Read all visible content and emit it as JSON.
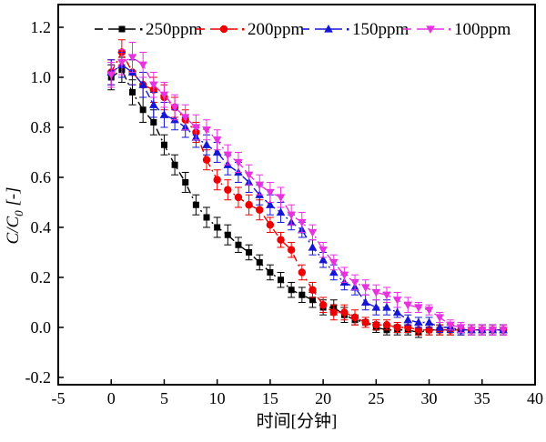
{
  "chart_data": {
    "type": "scatter",
    "title": "",
    "xlabel": "时间[分钟]",
    "ylabel": "C/C0 [-]",
    "ylabel_parts": {
      "pre": "C/C",
      "sub": "0",
      "post": " [-]"
    },
    "xlim": [
      -5,
      40
    ],
    "ylim": [
      -0.2,
      1.2
    ],
    "xticks": [
      "-5",
      "0",
      "5",
      "10",
      "15",
      "20",
      "25",
      "30",
      "35",
      "40"
    ],
    "yticks": [
      "-0.2",
      "0.0",
      "0.2",
      "0.4",
      "0.6",
      "0.8",
      "1.0",
      "1.2"
    ],
    "grid": false,
    "legend_position": "top-inside",
    "line_style": "dash-dot",
    "error_bars": true,
    "x": [
      0,
      1,
      2,
      3,
      4,
      5,
      6,
      7,
      8,
      9,
      10,
      11,
      12,
      13,
      14,
      15,
      16,
      17,
      18,
      19,
      20,
      21,
      22,
      23,
      24,
      25,
      26,
      27,
      28,
      29,
      30,
      31,
      32,
      33,
      34,
      35,
      36,
      37
    ],
    "series": [
      {
        "name": "250ppm",
        "color": "#000000",
        "marker": "square",
        "values": [
          1.0,
          1.03,
          0.94,
          0.87,
          0.82,
          0.73,
          0.65,
          0.58,
          0.49,
          0.44,
          0.4,
          0.37,
          0.33,
          0.3,
          0.26,
          0.22,
          0.19,
          0.15,
          0.13,
          0.11,
          0.08,
          0.08,
          0.05,
          0.03,
          0.02,
          0.0,
          -0.01,
          -0.01,
          -0.01,
          -0.02,
          -0.01,
          -0.01,
          -0.01,
          -0.01,
          -0.01,
          -0.01,
          -0.01,
          -0.01
        ],
        "errors": [
          0.05,
          0.05,
          0.05,
          0.05,
          0.05,
          0.04,
          0.04,
          0.04,
          0.04,
          0.04,
          0.04,
          0.04,
          0.03,
          0.03,
          0.03,
          0.03,
          0.03,
          0.03,
          0.03,
          0.03,
          0.03,
          0.03,
          0.03,
          0.02,
          0.02,
          0.02,
          0.02,
          0.02,
          0.02,
          0.02,
          0.02,
          0.02,
          0.02,
          0.02,
          0.02,
          0.02,
          0.02,
          0.02
        ]
      },
      {
        "name": "200ppm",
        "color": "#ee0000",
        "marker": "circle",
        "values": [
          1.02,
          1.1,
          1.02,
          0.97,
          0.95,
          0.92,
          0.88,
          0.83,
          0.78,
          0.67,
          0.59,
          0.55,
          0.52,
          0.49,
          0.47,
          0.41,
          0.35,
          0.31,
          0.22,
          0.15,
          0.09,
          0.06,
          0.06,
          0.04,
          0.02,
          0.01,
          0.01,
          0.0,
          0.0,
          -0.01,
          -0.01,
          -0.01,
          -0.01,
          -0.01,
          -0.01,
          -0.01,
          -0.01,
          -0.01
        ],
        "errors": [
          0.05,
          0.05,
          0.05,
          0.05,
          0.05,
          0.05,
          0.04,
          0.04,
          0.04,
          0.04,
          0.04,
          0.04,
          0.04,
          0.04,
          0.04,
          0.03,
          0.03,
          0.03,
          0.03,
          0.03,
          0.03,
          0.03,
          0.03,
          0.03,
          0.02,
          0.02,
          0.02,
          0.02,
          0.02,
          0.02,
          0.02,
          0.02,
          0.02,
          0.02,
          0.02,
          0.02,
          0.02,
          0.02
        ]
      },
      {
        "name": "150ppm",
        "color": "#1616d6",
        "marker": "triangle-up",
        "values": [
          1.02,
          1.05,
          1.02,
          0.97,
          0.89,
          0.85,
          0.83,
          0.8,
          0.76,
          0.73,
          0.7,
          0.65,
          0.62,
          0.58,
          0.53,
          0.49,
          0.46,
          0.42,
          0.39,
          0.32,
          0.27,
          0.22,
          0.18,
          0.16,
          0.1,
          0.08,
          0.08,
          0.06,
          0.03,
          0.02,
          0.02,
          0.0,
          0.0,
          -0.01,
          -0.01,
          -0.01,
          -0.01,
          -0.01
        ],
        "errors": [
          0.05,
          0.05,
          0.05,
          0.05,
          0.05,
          0.05,
          0.04,
          0.04,
          0.04,
          0.04,
          0.04,
          0.04,
          0.04,
          0.04,
          0.04,
          0.04,
          0.04,
          0.03,
          0.03,
          0.03,
          0.03,
          0.03,
          0.03,
          0.03,
          0.03,
          0.03,
          0.03,
          0.02,
          0.02,
          0.02,
          0.02,
          0.02,
          0.02,
          0.02,
          0.02,
          0.02,
          0.02,
          0.02
        ]
      },
      {
        "name": "100ppm",
        "color": "#e832e0",
        "marker": "triangle-down",
        "values": [
          1.01,
          1.06,
          1.08,
          1.05,
          0.97,
          0.93,
          0.88,
          0.84,
          0.8,
          0.79,
          0.75,
          0.69,
          0.66,
          0.61,
          0.57,
          0.54,
          0.52,
          0.45,
          0.42,
          0.38,
          0.31,
          0.26,
          0.21,
          0.18,
          0.16,
          0.14,
          0.13,
          0.11,
          0.09,
          0.08,
          0.07,
          0.04,
          0.01,
          0.0,
          -0.01,
          -0.01,
          -0.01,
          -0.01
        ],
        "errors": [
          0.05,
          0.05,
          0.06,
          0.05,
          0.05,
          0.05,
          0.05,
          0.05,
          0.05,
          0.04,
          0.04,
          0.04,
          0.04,
          0.04,
          0.04,
          0.04,
          0.04,
          0.04,
          0.04,
          0.03,
          0.03,
          0.03,
          0.03,
          0.03,
          0.03,
          0.03,
          0.03,
          0.03,
          0.03,
          0.02,
          0.02,
          0.02,
          0.02,
          0.02,
          0.02,
          0.02,
          0.02,
          0.02
        ]
      }
    ]
  }
}
